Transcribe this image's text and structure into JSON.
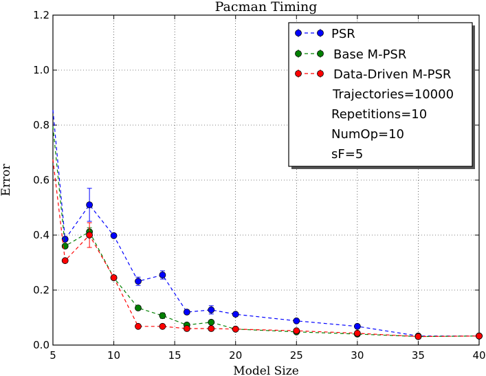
{
  "chart_data": {
    "type": "line",
    "title": "Pacman Timing",
    "xlabel": "Model Size",
    "ylabel": "Error",
    "xlim": [
      5,
      40
    ],
    "ylim": [
      0,
      1.2
    ],
    "xticks": [
      5,
      10,
      15,
      20,
      25,
      30,
      35,
      40
    ],
    "yticks": [
      0.0,
      0.2,
      0.4,
      0.6,
      0.8,
      1.0,
      1.2
    ],
    "xtick_labels": [
      "5",
      "10",
      "15",
      "20",
      "25",
      "30",
      "35",
      "40"
    ],
    "ytick_labels": [
      "0.0",
      "0.2",
      "0.4",
      "0.6",
      "0.8",
      "1.0",
      "1.2"
    ],
    "grid": true,
    "legend_position": "top-right",
    "series": [
      {
        "name": "PSR",
        "color": "#0000ff",
        "x": [
          5,
          6,
          8,
          10,
          12,
          14,
          16,
          18,
          20,
          25,
          30,
          35,
          40
        ],
        "y": [
          0.855,
          0.385,
          0.51,
          0.398,
          0.232,
          0.255,
          0.12,
          0.128,
          0.112,
          0.088,
          0.068,
          0.033,
          0.033
        ],
        "err": [
          0,
          0,
          0.06,
          0,
          0.015,
          0.015,
          0,
          0.015,
          0,
          0,
          0,
          0,
          0
        ]
      },
      {
        "name": "Base M-PSR",
        "color": "#008000",
        "x": [
          5,
          6,
          8,
          10,
          12,
          14,
          16,
          18,
          20,
          25,
          30,
          35,
          40
        ],
        "y": [
          0.795,
          0.36,
          0.412,
          0.245,
          0.135,
          0.107,
          0.073,
          0.083,
          0.058,
          0.048,
          0.04,
          0.031,
          0.033
        ],
        "err": [
          0,
          0,
          0.015,
          0,
          0,
          0.01,
          0,
          0.005,
          0,
          0,
          0,
          0,
          0
        ]
      },
      {
        "name": "Data-Driven M-PSR",
        "color": "#ff0000",
        "x": [
          5,
          6,
          8,
          10,
          12,
          14,
          16,
          18,
          20,
          25,
          30,
          35,
          40
        ],
        "y": [
          0.675,
          0.307,
          0.4,
          0.245,
          0.068,
          0.068,
          0.06,
          0.06,
          0.058,
          0.052,
          0.043,
          0.031,
          0.033
        ],
        "err": [
          0,
          0,
          0.045,
          0,
          0,
          0,
          0,
          0,
          0,
          0,
          0,
          0,
          0
        ]
      }
    ],
    "legend_notes": [
      "Trajectories=10000",
      "Repetitions=10",
      "NumOp=10",
      "sF=5"
    ]
  }
}
